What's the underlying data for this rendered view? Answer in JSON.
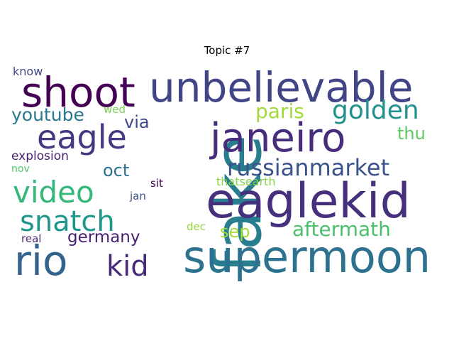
{
  "title": "Topic #7",
  "words": [
    {
      "text": "fake",
      "color": "#287d8e"
    },
    {
      "text": "eaglekid",
      "color": "#46307e"
    },
    {
      "text": "supermoon",
      "color": "#2c728e"
    },
    {
      "text": "shoot",
      "color": "#440154"
    },
    {
      "text": "unbelievable",
      "color": "#414487"
    },
    {
      "text": "janeiro",
      "color": "#472d7b"
    },
    {
      "text": "eagle",
      "color": "#453781"
    },
    {
      "text": "rio",
      "color": "#33638d"
    },
    {
      "text": "video",
      "color": "#35b779"
    },
    {
      "text": "snatch",
      "color": "#1f968b"
    },
    {
      "text": "russianmarket",
      "color": "#3b528b"
    },
    {
      "text": "golden",
      "color": "#21918c"
    },
    {
      "text": "kid",
      "color": "#482878"
    },
    {
      "text": "youtube",
      "color": "#2a788e"
    },
    {
      "text": "aftermath",
      "color": "#4ac16d"
    },
    {
      "text": "paris",
      "color": "#a0da39"
    },
    {
      "text": "germany",
      "color": "#481f70"
    },
    {
      "text": "sep",
      "color": "#a5db36"
    },
    {
      "text": "oct",
      "color": "#2d708e"
    },
    {
      "text": "via",
      "color": "#3e4989"
    },
    {
      "text": "thu",
      "color": "#5ec962"
    },
    {
      "text": "explosion",
      "color": "#482173"
    },
    {
      "text": "thatsearth",
      "color": "#86d549"
    },
    {
      "text": "know",
      "color": "#3e4a89"
    },
    {
      "text": "wed",
      "color": "#7ad151"
    },
    {
      "text": "nov",
      "color": "#54c568"
    },
    {
      "text": "sit",
      "color": "#440154"
    },
    {
      "text": "jan",
      "color": "#3b528b"
    },
    {
      "text": "dec",
      "color": "#95d840"
    },
    {
      "text": "real",
      "color": "#482878"
    }
  ]
}
